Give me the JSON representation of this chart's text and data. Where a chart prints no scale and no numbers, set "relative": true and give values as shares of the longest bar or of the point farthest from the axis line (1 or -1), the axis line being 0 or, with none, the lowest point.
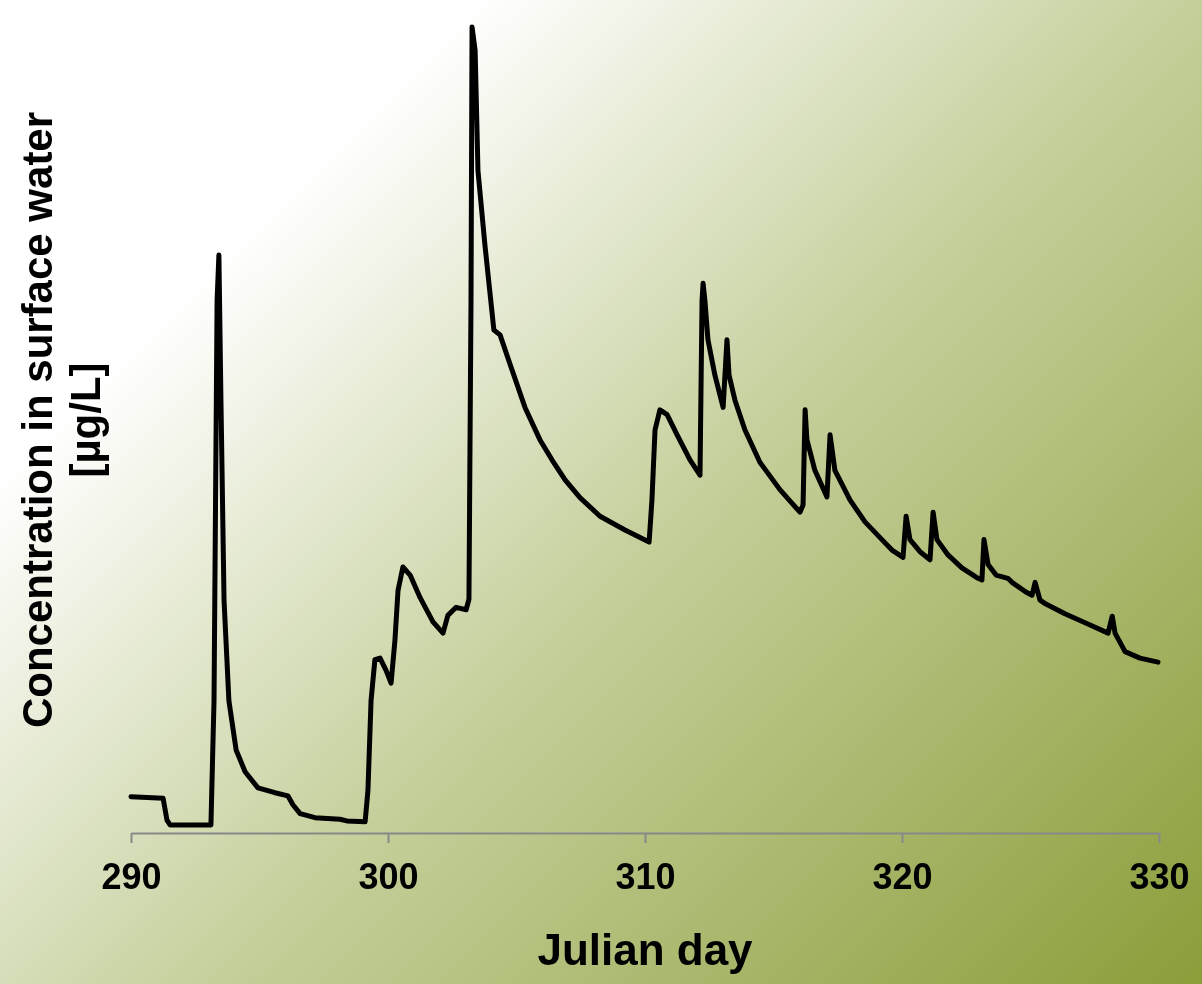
{
  "chart_data": {
    "type": "line",
    "relative": true,
    "xlabel": "Julian day",
    "ylabel": "Concentration in surface water [µg/L]",
    "xlim": [
      290,
      330
    ],
    "xticks": [
      290,
      300,
      310,
      320,
      330
    ],
    "grid": false,
    "marker": "none",
    "line_style": "solid",
    "series": [
      {
        "color": "#000000",
        "x": [
          290.0,
          291.25,
          291.4,
          291.52,
          293.11,
          293.23,
          293.35,
          293.42,
          293.5,
          293.62,
          293.81,
          294.09,
          294.44,
          294.94,
          295.6,
          296.11,
          296.3,
          296.58,
          297.16,
          298.13,
          298.4,
          299.11,
          299.22,
          299.34,
          299.49,
          299.69,
          299.92,
          300.12,
          300.27,
          300.39,
          300.58,
          300.86,
          301.25,
          301.75,
          302.14,
          302.33,
          302.65,
          303.04,
          303.15,
          303.23,
          303.27,
          303.39,
          303.5,
          303.77,
          304.12,
          304.36,
          304.82,
          305.33,
          305.91,
          306.38,
          306.89,
          307.47,
          308.25,
          309.22,
          310.16,
          310.27,
          310.39,
          310.58,
          310.86,
          311.25,
          311.75,
          312.14,
          312.22,
          312.26,
          312.33,
          312.45,
          312.72,
          313.04,
          313.19,
          313.27,
          313.5,
          313.89,
          314.47,
          315.25,
          316.03,
          316.15,
          316.23,
          316.3,
          316.61,
          317.08,
          317.2,
          317.39,
          317.98,
          318.56,
          319.22,
          319.61,
          320.04,
          320.16,
          320.31,
          320.7,
          321.09,
          321.21,
          321.36,
          321.79,
          322.33,
          322.96,
          323.11,
          323.19,
          323.35,
          323.66,
          324.12,
          324.28,
          324.82,
          325.06,
          325.18,
          325.37,
          325.6,
          326.34,
          327.32,
          328.02,
          328.18,
          328.29,
          328.68,
          329.26,
          329.96
        ],
        "values": [
          0.045,
          0.043,
          0.016,
          0.01,
          0.01,
          0.164,
          0.661,
          0.717,
          0.537,
          0.289,
          0.164,
          0.103,
          0.076,
          0.056,
          0.05,
          0.046,
          0.035,
          0.024,
          0.019,
          0.017,
          0.015,
          0.014,
          0.053,
          0.164,
          0.215,
          0.217,
          0.202,
          0.186,
          0.239,
          0.301,
          0.33,
          0.32,
          0.292,
          0.262,
          0.248,
          0.27,
          0.28,
          0.277,
          0.29,
          0.661,
          1.0,
          0.971,
          0.822,
          0.73,
          0.624,
          0.618,
          0.575,
          0.528,
          0.488,
          0.463,
          0.438,
          0.416,
          0.393,
          0.376,
          0.361,
          0.413,
          0.5,
          0.525,
          0.519,
          0.494,
          0.463,
          0.444,
          0.661,
          0.682,
          0.661,
          0.612,
          0.568,
          0.528,
          0.612,
          0.568,
          0.537,
          0.5,
          0.46,
          0.426,
          0.398,
          0.407,
          0.525,
          0.488,
          0.45,
          0.417,
          0.494,
          0.45,
          0.413,
          0.386,
          0.364,
          0.351,
          0.342,
          0.393,
          0.364,
          0.349,
          0.339,
          0.398,
          0.364,
          0.345,
          0.329,
          0.316,
          0.314,
          0.364,
          0.333,
          0.32,
          0.316,
          0.311,
          0.299,
          0.295,
          0.311,
          0.289,
          0.284,
          0.272,
          0.258,
          0.248,
          0.269,
          0.248,
          0.225,
          0.217,
          0.212
        ]
      }
    ]
  }
}
